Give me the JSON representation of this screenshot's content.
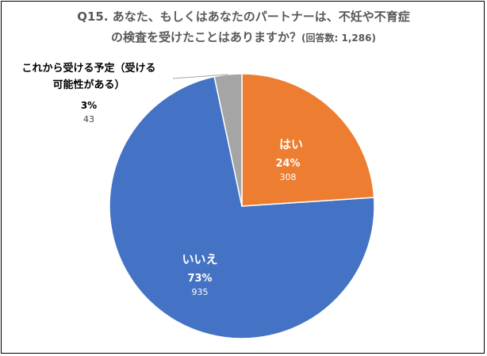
{
  "title": {
    "line1": "Q15. あなた、もしくはあなたのパートナーは、不妊や不育症",
    "line2": "の検査を受けたことはありますか？",
    "note": "(回答数: 1,286)"
  },
  "colors": {
    "yes": "#ED7D31",
    "no": "#4472C4",
    "planned": "#A5A5A5",
    "title": "#595959"
  },
  "chart_data": {
    "type": "pie",
    "total": 1286,
    "slices": [
      {
        "label": "はい",
        "percent": "24%",
        "count": "308",
        "value": 308
      },
      {
        "label": "いいえ",
        "percent": "73%",
        "count": "935",
        "value": 935
      },
      {
        "label_line1": "これから受ける予定（受ける",
        "label_line2": "可能性がある）",
        "percent": "3%",
        "count": "43",
        "value": 43
      }
    ]
  }
}
